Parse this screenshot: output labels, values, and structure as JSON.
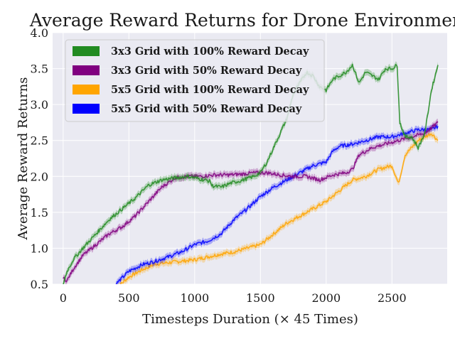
{
  "chart_data": {
    "type": "line",
    "title": "Average Reward Returns for Drone Environment",
    "xlabel": "Timesteps Duration (× 45 Times)",
    "ylabel": "Average Reward Returns",
    "xlim": [
      -80,
      2920
    ],
    "ylim": [
      0.5,
      4.0
    ],
    "xticks": [
      0,
      500,
      1000,
      1500,
      2000,
      2500
    ],
    "yticks": [
      0.5,
      1.0,
      1.5,
      2.0,
      2.5,
      3.0,
      3.5,
      4.0
    ],
    "xtick_labels": [
      "0",
      "500",
      "1000",
      "1500",
      "2000",
      "2500"
    ],
    "ytick_labels": [
      "0.5",
      "1.0",
      "1.5",
      "2.0",
      "2.5",
      "3.0",
      "3.5",
      "4.0"
    ],
    "grid": true,
    "legend_position": "top-left",
    "background": "#eaeaf2",
    "series": [
      {
        "name": "3x3 Grid with 100% Reward Decay",
        "color": "#228b22",
        "points": [
          [
            0,
            0.5
          ],
          [
            30,
            0.68
          ],
          [
            80,
            0.85
          ],
          [
            150,
            1.0
          ],
          [
            250,
            1.2
          ],
          [
            350,
            1.4
          ],
          [
            450,
            1.55
          ],
          [
            550,
            1.7
          ],
          [
            650,
            1.88
          ],
          [
            750,
            1.95
          ],
          [
            850,
            1.98
          ],
          [
            950,
            2.0
          ],
          [
            1050,
            1.96
          ],
          [
            1120,
            1.93
          ],
          [
            1130,
            1.87
          ],
          [
            1200,
            1.85
          ],
          [
            1280,
            1.91
          ],
          [
            1350,
            1.94
          ],
          [
            1450,
            2.0
          ],
          [
            1500,
            2.05
          ],
          [
            1550,
            2.2
          ],
          [
            1600,
            2.4
          ],
          [
            1650,
            2.6
          ],
          [
            1700,
            2.8
          ],
          [
            1750,
            3.15
          ],
          [
            1800,
            3.3
          ],
          [
            1850,
            3.45
          ],
          [
            1900,
            3.4
          ],
          [
            1950,
            3.25
          ],
          [
            2000,
            3.2
          ],
          [
            2050,
            3.35
          ],
          [
            2100,
            3.4
          ],
          [
            2150,
            3.45
          ],
          [
            2200,
            3.55
          ],
          [
            2250,
            3.3
          ],
          [
            2300,
            3.45
          ],
          [
            2350,
            3.4
          ],
          [
            2400,
            3.35
          ],
          [
            2450,
            3.5
          ],
          [
            2500,
            3.5
          ],
          [
            2540,
            3.55
          ],
          [
            2560,
            2.75
          ],
          [
            2600,
            2.55
          ],
          [
            2650,
            2.55
          ],
          [
            2700,
            2.4
          ],
          [
            2750,
            2.6
          ],
          [
            2800,
            3.2
          ],
          [
            2850,
            3.55
          ]
        ]
      },
      {
        "name": "3x3 Grid with 50% Reward Decay",
        "color": "#800080",
        "points": [
          [
            0,
            0.58
          ],
          [
            30,
            0.55
          ],
          [
            80,
            0.72
          ],
          [
            150,
            0.9
          ],
          [
            250,
            1.05
          ],
          [
            350,
            1.2
          ],
          [
            450,
            1.3
          ],
          [
            550,
            1.45
          ],
          [
            650,
            1.65
          ],
          [
            750,
            1.85
          ],
          [
            850,
            1.98
          ],
          [
            950,
            2.0
          ],
          [
            1050,
            2.0
          ],
          [
            1150,
            2.02
          ],
          [
            1250,
            2.02
          ],
          [
            1350,
            2.03
          ],
          [
            1450,
            2.05
          ],
          [
            1550,
            2.05
          ],
          [
            1650,
            2.02
          ],
          [
            1750,
            2.0
          ],
          [
            1850,
            2.0
          ],
          [
            1950,
            1.95
          ],
          [
            2050,
            2.02
          ],
          [
            2150,
            2.05
          ],
          [
            2200,
            2.1
          ],
          [
            2250,
            2.3
          ],
          [
            2350,
            2.4
          ],
          [
            2450,
            2.45
          ],
          [
            2550,
            2.5
          ],
          [
            2650,
            2.55
          ],
          [
            2750,
            2.6
          ],
          [
            2850,
            2.75
          ]
        ]
      },
      {
        "name": "5x5 Grid with 100% Reward Decay",
        "color": "#ffa500",
        "points": [
          [
            400,
            0.44
          ],
          [
            500,
            0.6
          ],
          [
            600,
            0.7
          ],
          [
            700,
            0.78
          ],
          [
            800,
            0.8
          ],
          [
            900,
            0.82
          ],
          [
            1000,
            0.84
          ],
          [
            1100,
            0.88
          ],
          [
            1200,
            0.92
          ],
          [
            1300,
            0.95
          ],
          [
            1400,
            1.0
          ],
          [
            1500,
            1.05
          ],
          [
            1600,
            1.2
          ],
          [
            1700,
            1.35
          ],
          [
            1800,
            1.45
          ],
          [
            1900,
            1.55
          ],
          [
            2000,
            1.65
          ],
          [
            2100,
            1.8
          ],
          [
            2200,
            1.95
          ],
          [
            2300,
            2.0
          ],
          [
            2400,
            2.1
          ],
          [
            2500,
            2.15
          ],
          [
            2550,
            1.9
          ],
          [
            2600,
            2.3
          ],
          [
            2650,
            2.4
          ],
          [
            2700,
            2.5
          ],
          [
            2750,
            2.55
          ],
          [
            2800,
            2.6
          ],
          [
            2850,
            2.5
          ]
        ]
      },
      {
        "name": "5x5 Grid with 50% Reward Decay",
        "color": "#0000ff",
        "points": [
          [
            400,
            0.5
          ],
          [
            500,
            0.68
          ],
          [
            600,
            0.77
          ],
          [
            700,
            0.82
          ],
          [
            800,
            0.88
          ],
          [
            900,
            0.95
          ],
          [
            1000,
            1.05
          ],
          [
            1100,
            1.1
          ],
          [
            1200,
            1.2
          ],
          [
            1300,
            1.4
          ],
          [
            1400,
            1.55
          ],
          [
            1500,
            1.72
          ],
          [
            1600,
            1.85
          ],
          [
            1700,
            1.95
          ],
          [
            1800,
            2.05
          ],
          [
            1900,
            2.15
          ],
          [
            2000,
            2.2
          ],
          [
            2050,
            2.35
          ],
          [
            2100,
            2.42
          ],
          [
            2200,
            2.45
          ],
          [
            2300,
            2.5
          ],
          [
            2400,
            2.55
          ],
          [
            2500,
            2.55
          ],
          [
            2600,
            2.6
          ],
          [
            2700,
            2.65
          ],
          [
            2800,
            2.65
          ],
          [
            2850,
            2.7
          ]
        ]
      }
    ]
  }
}
